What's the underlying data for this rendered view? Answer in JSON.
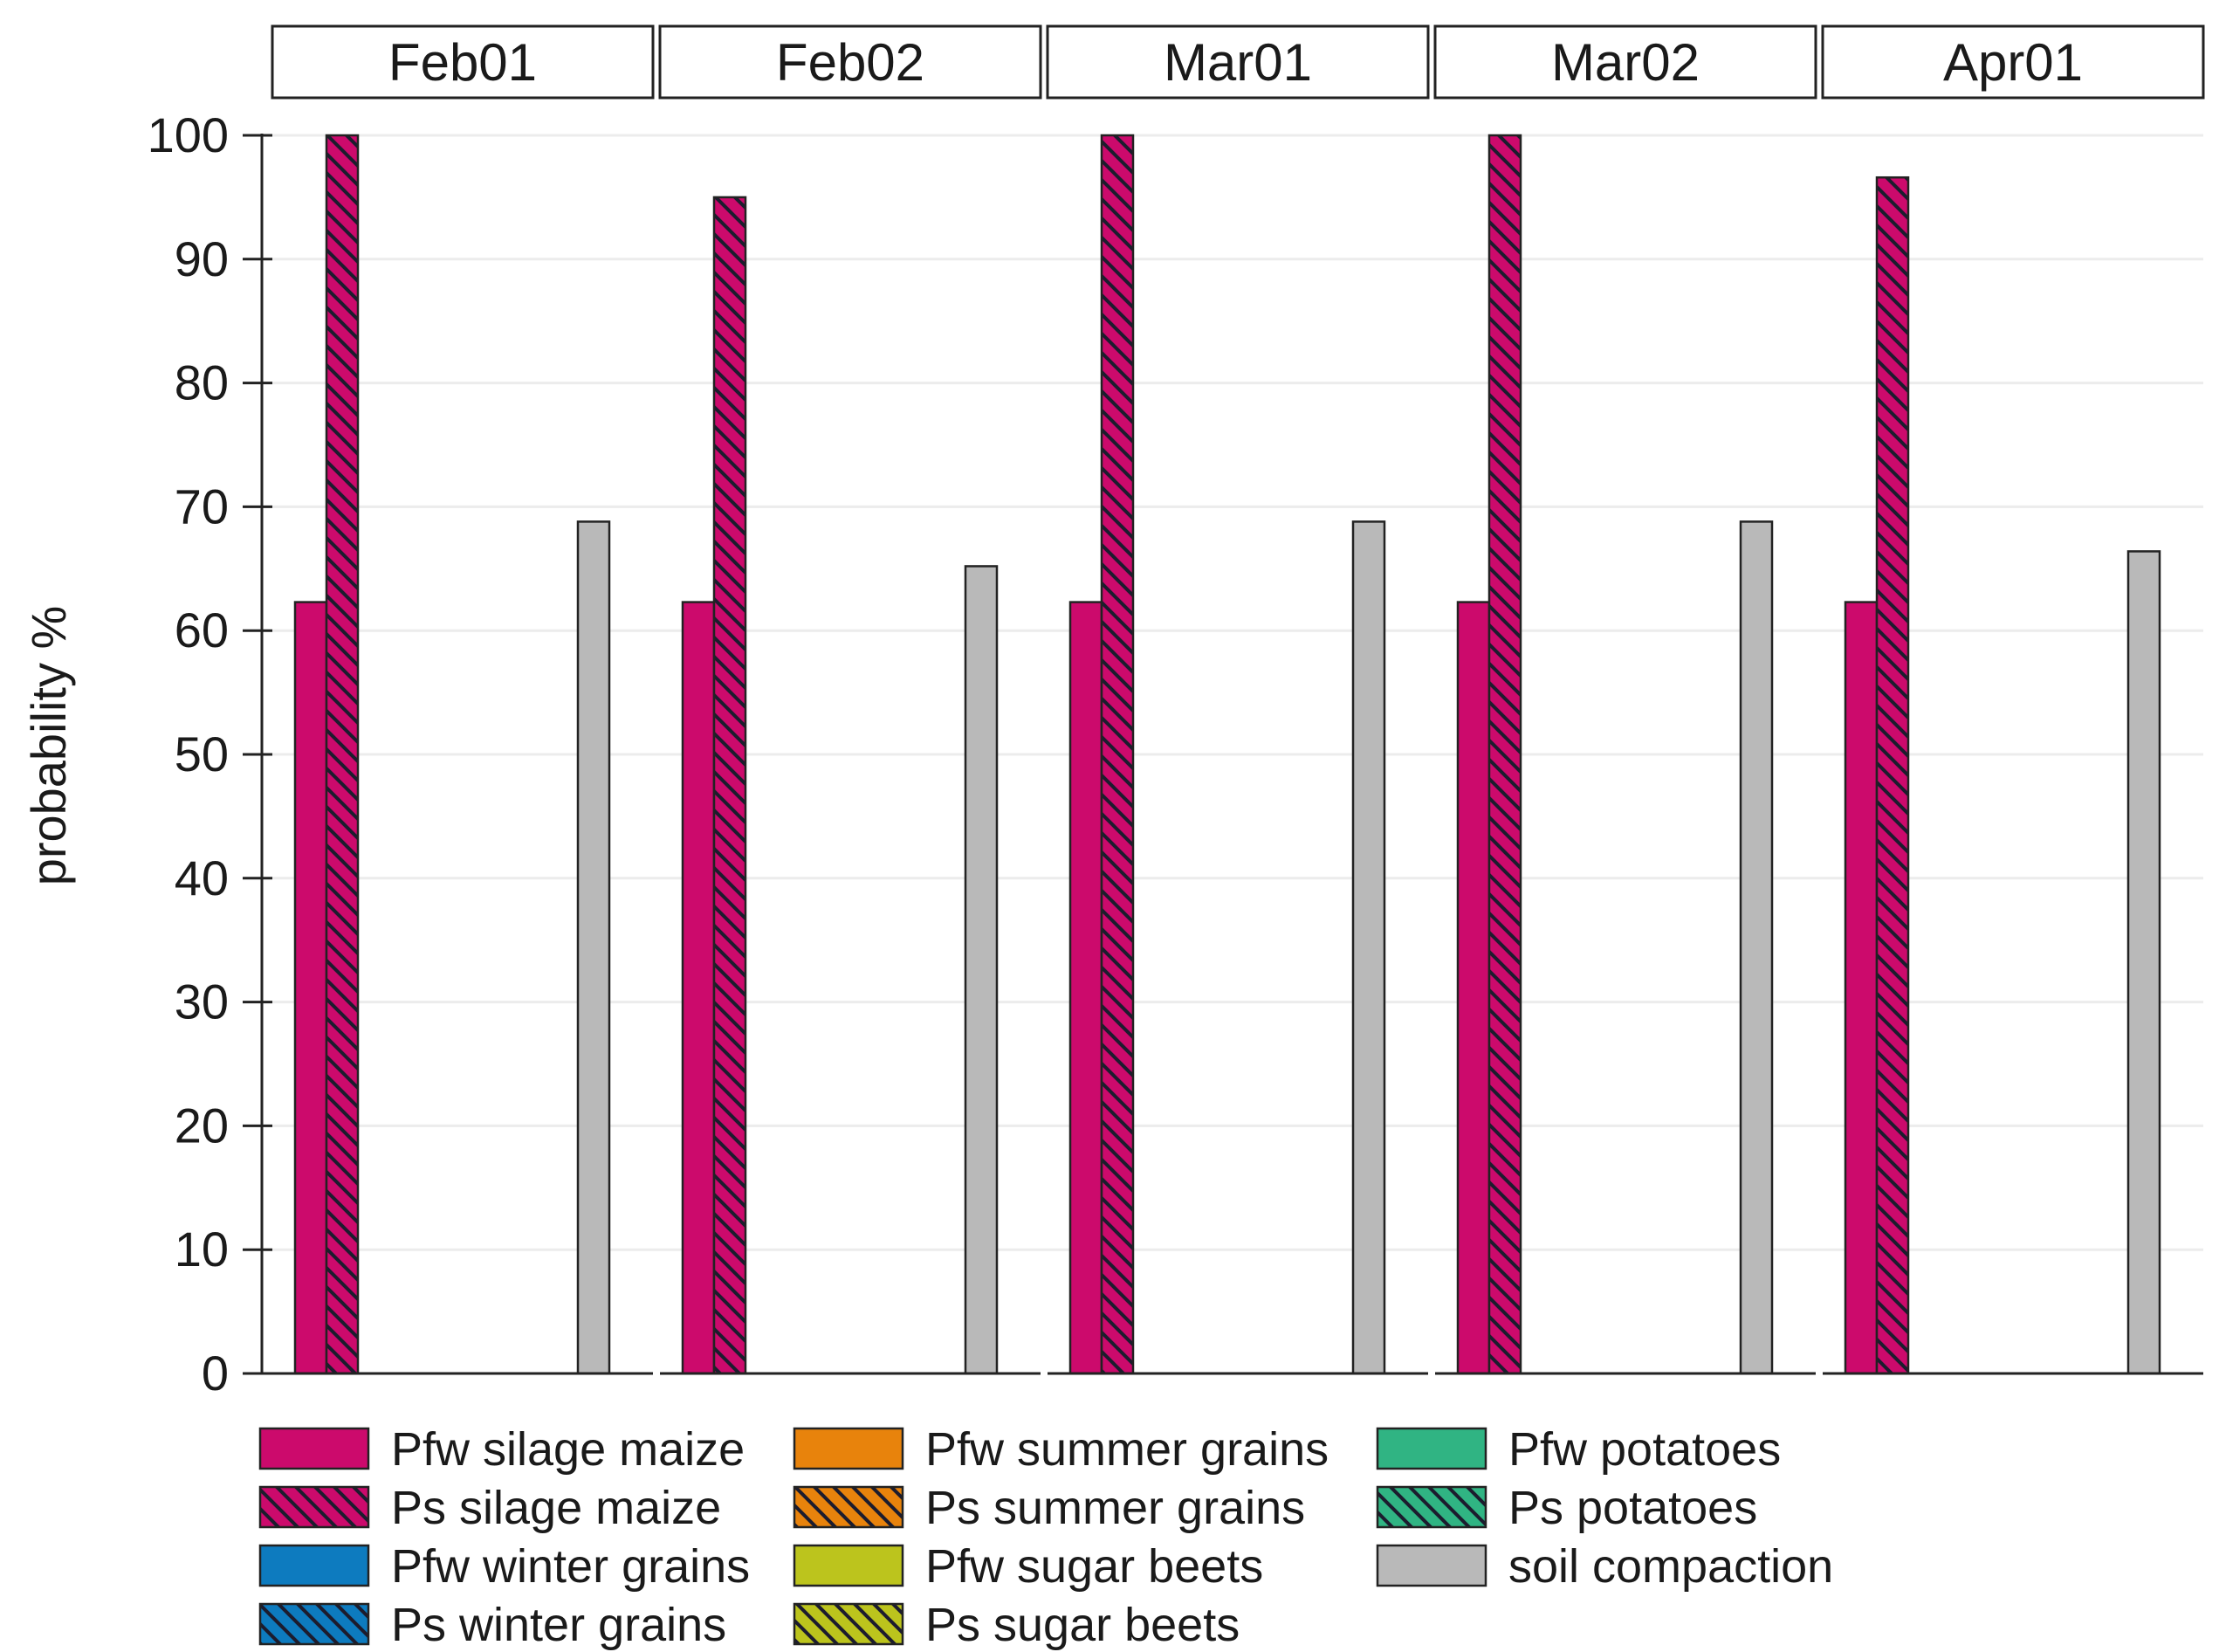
{
  "chart_data": {
    "type": "bar",
    "ylabel": "probability  %",
    "xlabel": "",
    "ylim": [
      0,
      100
    ],
    "yticks": [
      0,
      10,
      20,
      30,
      40,
      50,
      60,
      70,
      80,
      90,
      100
    ],
    "grid": true,
    "legend_position": "bottom",
    "panels": [
      {
        "label": "Feb01",
        "values": [
          62.3,
          100,
          0,
          0,
          0,
          0,
          0,
          0,
          0,
          68.8
        ]
      },
      {
        "label": "Feb02",
        "values": [
          62.3,
          95,
          0,
          0,
          0,
          0,
          0,
          0,
          0,
          65.2
        ]
      },
      {
        "label": "Mar01",
        "values": [
          62.3,
          100,
          0,
          0,
          0,
          0,
          0,
          0,
          0,
          68.8
        ]
      },
      {
        "label": "Mar02",
        "values": [
          62.3,
          100,
          0,
          0,
          0,
          0,
          0,
          0,
          0,
          68.8
        ]
      },
      {
        "label": "Apr01",
        "values": [
          62.3,
          96.6,
          0,
          0,
          0,
          0,
          0,
          0,
          0,
          66.4
        ]
      }
    ],
    "series": [
      {
        "name": "Pfw silage maize",
        "color": "#cc0a6c",
        "hatched": false
      },
      {
        "name": "Ps silage maize",
        "color": "#cc0a6c",
        "hatched": true
      },
      {
        "name": "Pfw winter grains",
        "color": "#0d7bbf",
        "hatched": false
      },
      {
        "name": "Ps winter grains",
        "color": "#0d7bbf",
        "hatched": true
      },
      {
        "name": "Pfw summer grains",
        "color": "#e8830c",
        "hatched": false
      },
      {
        "name": "Ps summer grains",
        "color": "#e8830c",
        "hatched": true
      },
      {
        "name": "Pfw sugar beets",
        "color": "#bcc41d",
        "hatched": false
      },
      {
        "name": "Ps sugar beets",
        "color": "#bcc41d",
        "hatched": true
      },
      {
        "name": "Pfw potatoes",
        "color": "#30b483",
        "hatched": false
      },
      {
        "name": "Ps potatoes",
        "color": "#30b483",
        "hatched": true
      },
      {
        "name": "soil compaction",
        "color": "#b9b9b9",
        "hatched": false
      }
    ],
    "bar_series_order": [
      0,
      1,
      2,
      3,
      4,
      5,
      6,
      7,
      8,
      10
    ]
  }
}
